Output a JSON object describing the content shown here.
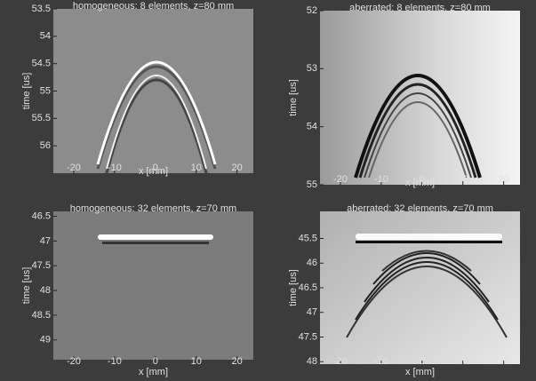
{
  "chart_data": [
    {
      "type": "image",
      "title": "homogeneous: 8 elements, z=80 mm",
      "xlabel": "x [mm]",
      "ylabel": "time [us]",
      "xlim": [
        -25,
        24
      ],
      "xticks": [
        -20,
        -10,
        0,
        10,
        20
      ],
      "ylim": [
        53.5,
        56.5
      ],
      "yticks": [
        53.5,
        54,
        54.5,
        55,
        55.5,
        56
      ]
    },
    {
      "type": "image",
      "title": "aberrated: 8 elements, z=80 mm",
      "xlabel": "x [mm]",
      "ylabel": "time [us]",
      "xlim": [
        -25,
        24
      ],
      "xticks": [
        -20,
        -10,
        0,
        10,
        20
      ],
      "ylim": [
        52,
        55
      ],
      "yticks": [
        52,
        53,
        54,
        55
      ]
    },
    {
      "type": "image",
      "title": "homogeneous: 32 elements, z=70 mm",
      "xlabel": "x [mm]",
      "ylabel": "time [us]",
      "xlim": [
        -25,
        24
      ],
      "xticks": [
        -20,
        -10,
        0,
        10,
        20
      ],
      "ylim": [
        46.4,
        49.4
      ],
      "yticks": [
        46.5,
        47,
        47.5,
        48,
        48.5,
        49
      ]
    },
    {
      "type": "image",
      "title": "aberrated: 32 elements, z=70 mm",
      "xlabel": "x [mm]",
      "ylabel": "time [us]",
      "xlim": [
        -25,
        24
      ],
      "xticks": [
        -20,
        -10,
        0,
        10,
        20
      ],
      "ylim": [
        44.95,
        48.05
      ],
      "yticks": [
        45.5,
        46,
        46.5,
        47,
        47.5,
        48
      ]
    }
  ]
}
